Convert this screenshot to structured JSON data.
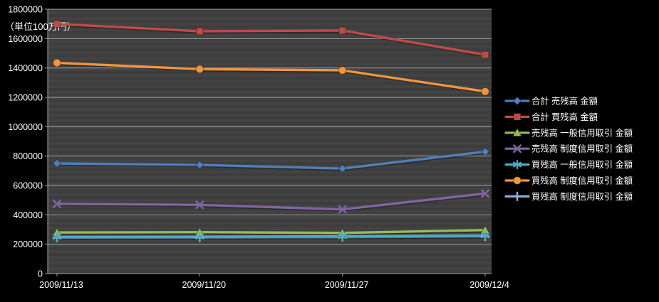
{
  "chart_data": {
    "type": "line",
    "title": "",
    "unit_label": "（単位100万円）",
    "xlabel": "",
    "ylabel": "",
    "categories": [
      "2009/11/13",
      "2009/11/20",
      "2009/11/27",
      "2009/12/4"
    ],
    "series": [
      {
        "name": "合計 売残高 金額",
        "marker": "diamond",
        "color": "#4E7FBA",
        "values": [
          750000,
          740000,
          715000,
          830000
        ]
      },
      {
        "name": "合計 買残高 金額",
        "marker": "square",
        "color": "#BE4B48",
        "values": [
          1700000,
          1650000,
          1655000,
          1490000
        ]
      },
      {
        "name": "売残高 一般信用取引 金額",
        "marker": "triangle",
        "color": "#9ABA58",
        "values": [
          280000,
          282000,
          277000,
          296000
        ]
      },
      {
        "name": "売残高 制度信用取引 金額",
        "marker": "x",
        "color": "#8064A2",
        "values": [
          475000,
          468000,
          437000,
          545000
        ]
      },
      {
        "name": "買残高 一般信用取引 金額",
        "marker": "asterisk",
        "color": "#4BACC6",
        "values": [
          250000,
          251000,
          254000,
          259000
        ]
      },
      {
        "name": "買残高 制度信用取引 金額",
        "marker": "circle",
        "color": "#F0953F",
        "values": [
          1435000,
          1392000,
          1384000,
          1240000
        ]
      },
      {
        "name": "買残高 制度信用取引 金額",
        "marker": "plus",
        "color": "#93A9D2",
        "values": [
          245000,
          246000,
          248000,
          253000
        ]
      }
    ],
    "ylim": [
      0,
      1800000
    ],
    "ytick_step": 200000,
    "ytick_labels": [
      "0",
      "200000",
      "400000",
      "600000",
      "800000",
      "1000000",
      "1200000",
      "1400000",
      "1600000",
      "1800000"
    ],
    "grid": true,
    "legend_position": "right"
  },
  "colors": {
    "page_background": "#000000",
    "plot_background": "#3F3F3F",
    "plot_band_light": "#434343",
    "plot_band_dark": "#3D3D3D",
    "gridline": "#A6A6A6",
    "axis": "#A6A6A6",
    "text": "#FFFFFF"
  }
}
